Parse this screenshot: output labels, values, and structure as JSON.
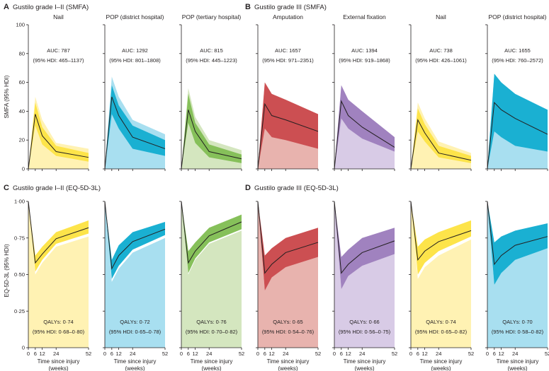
{
  "panels": {
    "A": {
      "letter": "A",
      "title": "Gustilo grade I–II (SMFA)"
    },
    "B": {
      "letter": "B",
      "title": "Gustilo grade III (SMFA)"
    },
    "C": {
      "letter": "C",
      "title": "Gustilo grade I–II (EQ-5D-3L)"
    },
    "D": {
      "letter": "D",
      "title": "Gustilo grade III (EQ-5D-3L)"
    }
  },
  "colors": {
    "yellow": {
      "outer": "#fff2b3",
      "inner": "#fde44a"
    },
    "blue": {
      "outer": "#a8dff0",
      "inner": "#1ab0d2"
    },
    "green": {
      "outer": "#d4e6bf",
      "inner": "#86c05a"
    },
    "red": {
      "outer": "#e8b3ae",
      "inner": "#cc4f52"
    },
    "purple": {
      "outer": "#d8cbe6",
      "inner": "#a082bf"
    }
  },
  "axis_labels": {
    "smfa_y": "SMFA (95% HDI)",
    "eq_y": "EQ-5D-3L (95% HDI)",
    "x_line1": "Time since injury",
    "x_line2": "(weeks)"
  },
  "chart_data": [
    {
      "type": "area",
      "panel": "A",
      "title": "Nail",
      "color": "yellow",
      "x": [
        0,
        6,
        12,
        24,
        52
      ],
      "median": [
        0,
        38,
        23,
        12,
        8
      ],
      "inner_lower": [
        0,
        30,
        17,
        9,
        5
      ],
      "inner_upper": [
        0,
        46,
        29,
        16,
        11
      ],
      "outer_upper": [
        0,
        50,
        34,
        18,
        14
      ],
      "ylim": [
        0,
        100
      ],
      "yticks": [
        "0",
        "20",
        "40",
        "60",
        "80",
        "100"
      ],
      "stat_line1": "AUC: 787",
      "stat_line2": "(95% HDI: 465–1137)"
    },
    {
      "type": "area",
      "panel": "A",
      "title": "POP (district hospital)",
      "color": "blue",
      "x": [
        0,
        6,
        12,
        24,
        52
      ],
      "median": [
        0,
        50,
        37,
        22,
        14
      ],
      "inner_lower": [
        0,
        38,
        28,
        14,
        9
      ],
      "inner_upper": [
        0,
        58,
        44,
        30,
        20
      ],
      "outer_upper": [
        0,
        64,
        50,
        34,
        24
      ],
      "ylim": [
        0,
        100
      ],
      "stat_line1": "AUC: 1292",
      "stat_line2": "(95% HDI: 801–1808)"
    },
    {
      "type": "area",
      "panel": "A",
      "title": "POP (tertiary hospital)",
      "color": "green",
      "x": [
        0,
        6,
        12,
        24,
        52
      ],
      "median": [
        0,
        41,
        26,
        12,
        7
      ],
      "inner_lower": [
        0,
        32,
        18,
        8,
        4
      ],
      "inner_upper": [
        0,
        52,
        32,
        17,
        10
      ],
      "outer_upper": [
        0,
        56,
        36,
        20,
        13
      ],
      "ylim": [
        0,
        100
      ],
      "stat_line1": "AUC: 815",
      "stat_line2": "(95% HDI: 445–1223)"
    },
    {
      "type": "area",
      "panel": "B",
      "title": "Amputation",
      "color": "red",
      "x": [
        0,
        6,
        12,
        24,
        52
      ],
      "median": [
        0,
        45,
        37,
        34,
        26
      ],
      "inner_lower": [
        0,
        28,
        22,
        20,
        14
      ],
      "inner_upper": [
        0,
        60,
        52,
        48,
        38
      ],
      "outer_upper": [
        0,
        60,
        52,
        48,
        38
      ],
      "ylim": [
        0,
        100
      ],
      "stat_line1": "AUC: 1657",
      "stat_line2": "(95% HDI: 971–2351)"
    },
    {
      "type": "area",
      "panel": "B",
      "title": "External fixation",
      "color": "purple",
      "x": [
        0,
        6,
        12,
        24,
        52
      ],
      "median": [
        0,
        47,
        37,
        29,
        15
      ],
      "inner_lower": [
        0,
        35,
        28,
        21,
        12
      ],
      "inner_upper": [
        0,
        58,
        48,
        40,
        22
      ],
      "outer_upper": [
        0,
        58,
        48,
        40,
        22
      ],
      "ylim": [
        0,
        100
      ],
      "stat_line1": "AUC: 1394",
      "stat_line2": "(95% HDI: 919–1868)"
    },
    {
      "type": "area",
      "panel": "B",
      "title": "Nail",
      "color": "yellow",
      "x": [
        0,
        6,
        12,
        24,
        52
      ],
      "median": [
        0,
        34,
        25,
        11,
        6
      ],
      "inner_lower": [
        0,
        26,
        19,
        8,
        4
      ],
      "inner_upper": [
        0,
        42,
        31,
        16,
        9
      ],
      "outer_upper": [
        0,
        46,
        35,
        19,
        11
      ],
      "ylim": [
        0,
        100
      ],
      "stat_line1": "AUC: 738",
      "stat_line2": "(95% HDI: 426–1061)"
    },
    {
      "type": "area",
      "panel": "B",
      "title": "POP (district hospital)",
      "color": "blue",
      "x": [
        0,
        6,
        12,
        24,
        52
      ],
      "median": [
        0,
        46,
        41,
        35,
        24
      ],
      "inner_lower": [
        0,
        26,
        22,
        16,
        12
      ],
      "inner_upper": [
        0,
        66,
        60,
        52,
        41
      ],
      "outer_upper": [
        0,
        66,
        60,
        52,
        41
      ],
      "ylim": [
        0,
        100
      ],
      "stat_line1": "AUC: 1655",
      "stat_line2": "(95% HDI: 760–2572)"
    },
    {
      "type": "area",
      "panel": "C",
      "title": "",
      "color": "yellow",
      "x": [
        0,
        6,
        12,
        24,
        52
      ],
      "median": [
        1.0,
        0.58,
        0.64,
        0.745,
        0.82
      ],
      "inner_lower": [
        1.0,
        0.52,
        0.6,
        0.71,
        0.78
      ],
      "inner_upper": [
        1.0,
        0.63,
        0.69,
        0.79,
        0.87
      ],
      "outer_lower": [
        1.0,
        0.5,
        0.58,
        0.69,
        0.76
      ],
      "ylim": [
        0,
        1
      ],
      "yticks": [
        "0",
        "0·25",
        "0·50",
        "0·75",
        "1·00"
      ],
      "stat_line1": "QALYs: 0·74",
      "stat_line2": "(95% HDI: 0·68–0·80)"
    },
    {
      "type": "area",
      "panel": "C",
      "title": "",
      "color": "blue",
      "x": [
        0,
        6,
        12,
        24,
        52
      ],
      "median": [
        1.0,
        0.54,
        0.63,
        0.725,
        0.81
      ],
      "inner_lower": [
        1.0,
        0.47,
        0.56,
        0.67,
        0.77
      ],
      "inner_upper": [
        1.0,
        0.6,
        0.7,
        0.79,
        0.86
      ],
      "outer_lower": [
        1.0,
        0.45,
        0.54,
        0.65,
        0.75
      ],
      "ylim": [
        0,
        1
      ],
      "stat_line1": "QALYs: 0·72",
      "stat_line2": "(95% HDI: 0·65–0·78)"
    },
    {
      "type": "area",
      "panel": "C",
      "title": "",
      "color": "green",
      "x": [
        0,
        6,
        12,
        24,
        52
      ],
      "median": [
        1.0,
        0.58,
        0.66,
        0.765,
        0.86
      ],
      "inner_lower": [
        1.0,
        0.51,
        0.61,
        0.72,
        0.81
      ],
      "inner_upper": [
        1.0,
        0.66,
        0.72,
        0.82,
        0.91
      ],
      "outer_lower": [
        1.0,
        0.5,
        0.6,
        0.71,
        0.8
      ],
      "ylim": [
        0,
        1
      ],
      "stat_line1": "QALYs: 0·76",
      "stat_line2": "(95% HDI: 0·70–0·82)"
    },
    {
      "type": "area",
      "panel": "D",
      "title": "",
      "color": "red",
      "x": [
        0,
        6,
        12,
        24,
        52
      ],
      "median": [
        1.0,
        0.51,
        0.57,
        0.65,
        0.72
      ],
      "inner_lower": [
        1.0,
        0.39,
        0.48,
        0.55,
        0.62
      ],
      "inner_upper": [
        1.0,
        0.63,
        0.68,
        0.75,
        0.82
      ],
      "outer_lower": [
        1.0,
        0.39,
        0.48,
        0.55,
        0.62
      ],
      "ylim": [
        0,
        1
      ],
      "stat_line1": "QALYs: 0·65",
      "stat_line2": "(95% HDI: 0·54–0·76)"
    },
    {
      "type": "area",
      "panel": "D",
      "title": "",
      "color": "purple",
      "x": [
        0,
        6,
        12,
        24,
        52
      ],
      "median": [
        1.0,
        0.51,
        0.57,
        0.65,
        0.73
      ],
      "inner_lower": [
        1.0,
        0.4,
        0.49,
        0.56,
        0.64
      ],
      "inner_upper": [
        1.0,
        0.62,
        0.67,
        0.75,
        0.82
      ],
      "outer_lower": [
        1.0,
        0.4,
        0.49,
        0.56,
        0.64
      ],
      "ylim": [
        0,
        1
      ],
      "stat_line1": "QALYs: 0·66",
      "stat_line2": "(95% HDI: 0·56–0·75)"
    },
    {
      "type": "area",
      "panel": "D",
      "title": "",
      "color": "yellow",
      "x": [
        0,
        6,
        12,
        24,
        52
      ],
      "median": [
        1.0,
        0.6,
        0.66,
        0.725,
        0.8
      ],
      "inner_lower": [
        1.0,
        0.5,
        0.58,
        0.66,
        0.76
      ],
      "inner_upper": [
        1.0,
        0.69,
        0.74,
        0.79,
        0.87
      ],
      "outer_lower": [
        1.0,
        0.47,
        0.55,
        0.63,
        0.74
      ],
      "ylim": [
        0,
        1
      ],
      "stat_line1": "QALYs: 0·74",
      "stat_line2": "(95% HDI: 0·65–0·82)"
    },
    {
      "type": "area",
      "panel": "D",
      "title": "",
      "color": "blue",
      "x": [
        0,
        6,
        12,
        24,
        52
      ],
      "median": [
        1.0,
        0.57,
        0.63,
        0.7,
        0.76
      ],
      "inner_lower": [
        1.0,
        0.43,
        0.51,
        0.6,
        0.68
      ],
      "inner_upper": [
        1.0,
        0.72,
        0.76,
        0.8,
        0.85
      ],
      "outer_lower": [
        1.0,
        0.43,
        0.51,
        0.6,
        0.68
      ],
      "ylim": [
        0,
        1
      ],
      "stat_line1": "QALYs: 0·70",
      "stat_line2": "(95% HDI: 0·58–0·82)"
    }
  ],
  "x_ticks": [
    "0",
    "6",
    "12",
    "24",
    "52"
  ]
}
